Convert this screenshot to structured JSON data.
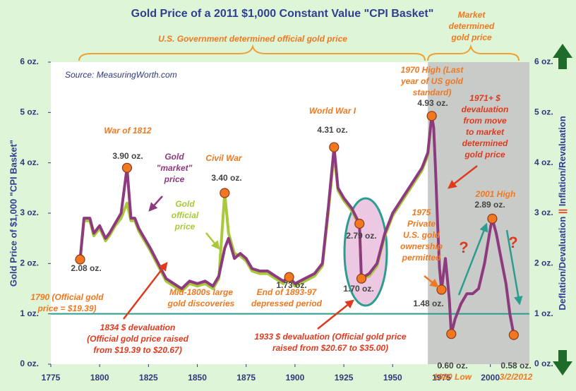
{
  "chart_data": {
    "type": "line",
    "title": "Gold Price of a 2011 $1,000 Constant Value \"CPI Basket\"",
    "source": "Source: MeasuringWorth.com",
    "y_label": "Gold Price of $1,000 \"CPI Basket\"",
    "y2_label": [
      "Deflation/Devaluation",
      "||",
      "Inflation/Revaluation"
    ],
    "bracket_labels": [
      [
        "U.S. Government determined official gold price"
      ],
      [
        "Market",
        "determined",
        "gold price"
      ]
    ],
    "xlim": [
      1775,
      2020
    ],
    "xticks": [
      1775,
      1800,
      1825,
      1850,
      1875,
      1900,
      1925,
      1950,
      1975,
      2000
    ],
    "ylim": [
      0,
      6
    ],
    "yticks": [
      {
        "value": 0,
        "label": "0 oz."
      },
      {
        "value": 1,
        "label": "1 oz."
      },
      {
        "value": 2,
        "label": "2 oz."
      },
      {
        "value": 3,
        "label": "3 oz."
      },
      {
        "value": 4,
        "label": "4 oz."
      },
      {
        "value": 5,
        "label": "5 oz."
      },
      {
        "value": 6,
        "label": "6 oz."
      }
    ],
    "reference_line": 1,
    "shade_xlim": [
      1968,
      2020
    ],
    "x": [
      1790,
      1792,
      1795,
      1797,
      1800,
      1803,
      1805,
      1808,
      1811,
      1814,
      1816,
      1818,
      1820,
      1823,
      1826,
      1830,
      1834,
      1838,
      1842,
      1846,
      1850,
      1854,
      1858,
      1861,
      1864,
      1866,
      1869,
      1872,
      1875,
      1878,
      1882,
      1886,
      1890,
      1894,
      1897,
      1900,
      1905,
      1910,
      1914,
      1917,
      1920,
      1922,
      1925,
      1929,
      1933,
      1934,
      1938,
      1942,
      1946,
      1950,
      1955,
      1960,
      1965,
      1968,
      1970,
      1971,
      1972,
      1973,
      1974,
      1975,
      1977,
      1979,
      1980,
      1982,
      1985,
      1988,
      1991,
      1994,
      1997,
      2000,
      2001,
      2003,
      2005,
      2008,
      2010,
      2012
    ],
    "series": [
      {
        "name": [
          "Gold",
          "official",
          "price"
        ],
        "color": "#a8c93a",
        "values": [
          2.08,
          2.85,
          2.85,
          2.55,
          2.7,
          2.45,
          2.55,
          2.75,
          2.9,
          3.2,
          2.85,
          2.85,
          2.65,
          2.45,
          2.25,
          1.95,
          1.65,
          1.55,
          1.45,
          1.6,
          1.55,
          1.6,
          1.5,
          1.7,
          3.4,
          2.6,
          2.2,
          2.15,
          2.05,
          1.85,
          1.8,
          1.8,
          1.7,
          1.6,
          1.7,
          1.55,
          1.65,
          1.75,
          1.95,
          3.0,
          4.2,
          3.45,
          3.25,
          3.05,
          2.75,
          1.7,
          1.75,
          1.95,
          2.55,
          2.95,
          3.25,
          3.55,
          3.85,
          4.15,
          4.93,
          null,
          null,
          null,
          null,
          null,
          null,
          null,
          null,
          null,
          null,
          null,
          null,
          null,
          null,
          null,
          null,
          null,
          null,
          null,
          null,
          null
        ]
      },
      {
        "name": [
          "Gold",
          "\"market\"",
          "price"
        ],
        "color": "#8e3a7e",
        "values": [
          2.08,
          2.9,
          2.9,
          2.6,
          2.75,
          2.5,
          2.6,
          2.8,
          3.0,
          3.9,
          2.9,
          2.9,
          2.7,
          2.5,
          2.3,
          2.0,
          1.7,
          1.6,
          1.5,
          1.65,
          1.6,
          1.65,
          1.55,
          1.75,
          2.3,
          2.5,
          2.1,
          2.2,
          2.1,
          1.9,
          1.85,
          1.85,
          1.75,
          1.65,
          1.73,
          1.6,
          1.7,
          1.8,
          2.0,
          3.1,
          4.31,
          3.5,
          3.3,
          3.1,
          2.79,
          1.7,
          1.8,
          2.0,
          2.6,
          3.0,
          3.3,
          3.6,
          3.9,
          4.2,
          4.93,
          4.7,
          3.8,
          2.8,
          1.9,
          1.48,
          2.1,
          1.3,
          0.6,
          0.9,
          1.2,
          1.4,
          1.4,
          1.5,
          2.0,
          2.7,
          2.89,
          2.6,
          2.2,
          1.6,
          1.0,
          0.58
        ]
      }
    ],
    "highlights": {
      "x": [
        1790,
        1814,
        1864,
        1897,
        1920,
        1933,
        1934,
        1970,
        1975,
        1980,
        2001,
        2012
      ],
      "values": [
        2.08,
        3.9,
        3.4,
        1.73,
        4.31,
        2.79,
        1.7,
        4.93,
        1.48,
        0.6,
        2.89,
        0.58
      ],
      "value_labels": [
        "2.08 oz.",
        "3.90 oz.",
        "3.40 oz.",
        "1.73 oz.",
        "4.31 oz.",
        "2.79 oz.",
        "1.70 oz.",
        "4.93 oz.",
        "1.48 oz.",
        "0.60 oz.",
        "2.89 oz.",
        "0.58 oz."
      ]
    },
    "annotations": [
      [
        "War of 1812"
      ],
      [
        "Civil War"
      ],
      [
        "World War I"
      ],
      [
        "1970 High (Last",
        "year of US gold",
        "standard)"
      ],
      [
        "1971+ $",
        "devaluation",
        "from move",
        "to market",
        "determined",
        "gold price"
      ],
      [
        "2001 High"
      ],
      [
        "1975",
        "Private",
        "U.S. gold",
        "ownership",
        "permitted"
      ],
      [
        "1790 (Official gold",
        "price = $19.39)"
      ],
      [
        "Mid-1800s large",
        "gold discoveries"
      ],
      [
        "End of 1893-97",
        "depressed period"
      ],
      [
        "1834 $ devaluation",
        "(Official gold price raised",
        "from $19.39 to $20.67)"
      ],
      [
        "1933 $ devaluation (Official gold price",
        "raised from $20.67 to $35.00)"
      ],
      [
        "1980 Low"
      ],
      [
        "3/2/2012"
      ],
      [
        "?"
      ],
      [
        "?"
      ]
    ]
  }
}
